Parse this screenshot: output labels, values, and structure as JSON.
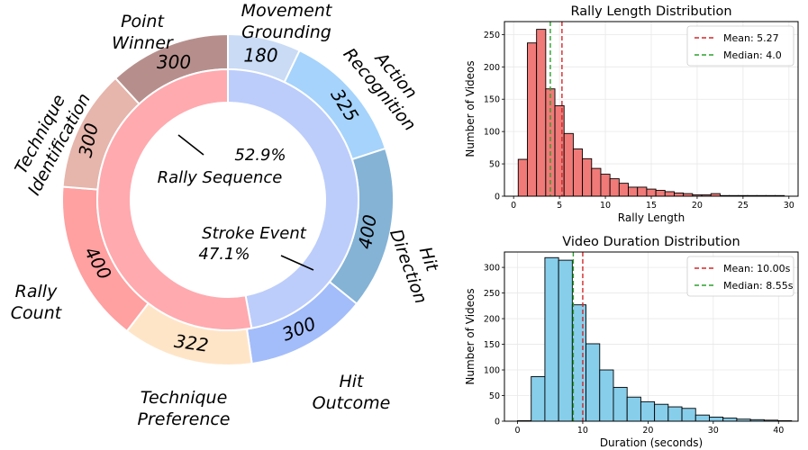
{
  "chart_data": [
    {
      "type": "pie",
      "subtype": "nested-donut",
      "inner_ring": [
        {
          "name": "Rally Sequence",
          "percent_label": "52.9%",
          "value": 52.9,
          "color": "#ffaaaf"
        },
        {
          "name": "Stroke Event",
          "percent_label": "47.1%",
          "value": 47.1,
          "color": "#bccdfb"
        }
      ],
      "outer_ring": [
        {
          "label": "Movement Grounding",
          "value": 180,
          "color": "#c9dbf5"
        },
        {
          "label": "Action Recognition",
          "value": 325,
          "color": "#a5d3fb"
        },
        {
          "label": "Hit Direction",
          "value": 400,
          "color": "#84b3d6"
        },
        {
          "label": "Hit Outcome",
          "value": 300,
          "color": "#a3bdfb"
        },
        {
          "label": "Technique Preference",
          "value": 322,
          "color": "#ffe5c8"
        },
        {
          "label": "Rally Count",
          "value": 400,
          "color": "#ffa0a1"
        },
        {
          "label": "Technique Identification",
          "value": 300,
          "color": "#e6b5ab"
        },
        {
          "label": "Point Winner",
          "value": 300,
          "color": "#b68f8c"
        }
      ]
    },
    {
      "type": "bar",
      "subtype": "histogram",
      "title": "Rally Length Distribution",
      "xlabel": "Rally Length",
      "ylabel": "Number of Videos",
      "bin_width": 1,
      "bin_start": 0.5,
      "values": [
        57,
        237,
        258,
        166,
        140,
        97,
        73,
        58,
        43,
        34,
        27,
        20,
        14,
        14,
        11,
        9,
        7,
        5,
        4,
        2,
        2,
        4,
        1,
        1,
        1,
        1,
        1,
        1,
        1
      ],
      "xlim": [
        -1,
        31
      ],
      "ylim": [
        0,
        270
      ],
      "xticks": [
        0,
        5,
        10,
        15,
        20,
        25,
        30
      ],
      "yticks": [
        0,
        50,
        100,
        150,
        200,
        250
      ],
      "bar_color": "#f07a78",
      "mean": 5.27,
      "median": 4.0,
      "legend": [
        "Mean: 5.27",
        "Median: 4.0"
      ],
      "legend_position": "top-right",
      "grid": true
    },
    {
      "type": "bar",
      "subtype": "histogram",
      "title": "Video Duration Distribution",
      "xlabel": "Duration (seconds)",
      "ylabel": "Number of Videos",
      "bin_edges": [
        0,
        2.1,
        4.2,
        6.3,
        8.4,
        10.5,
        12.6,
        14.7,
        16.8,
        18.9,
        21.0,
        23.1,
        25.2,
        27.3,
        29.4,
        31.5,
        33.6,
        35.7,
        37.8,
        39.9,
        42.0
      ],
      "values": [
        1,
        87,
        319,
        314,
        227,
        151,
        100,
        66,
        47,
        38,
        33,
        28,
        25,
        12,
        8,
        6,
        4,
        3,
        2,
        1
      ],
      "xlim": [
        -2,
        43
      ],
      "ylim": [
        0,
        330
      ],
      "xticks": [
        0,
        10,
        20,
        30,
        40
      ],
      "yticks": [
        0,
        50,
        100,
        150,
        200,
        250,
        300
      ],
      "bar_color": "#87ceeb",
      "mean": 10.0,
      "median": 8.55,
      "legend": [
        "Mean: 10.00s",
        "Median: 8.55s"
      ],
      "legend_position": "top-right",
      "grid": true
    }
  ]
}
